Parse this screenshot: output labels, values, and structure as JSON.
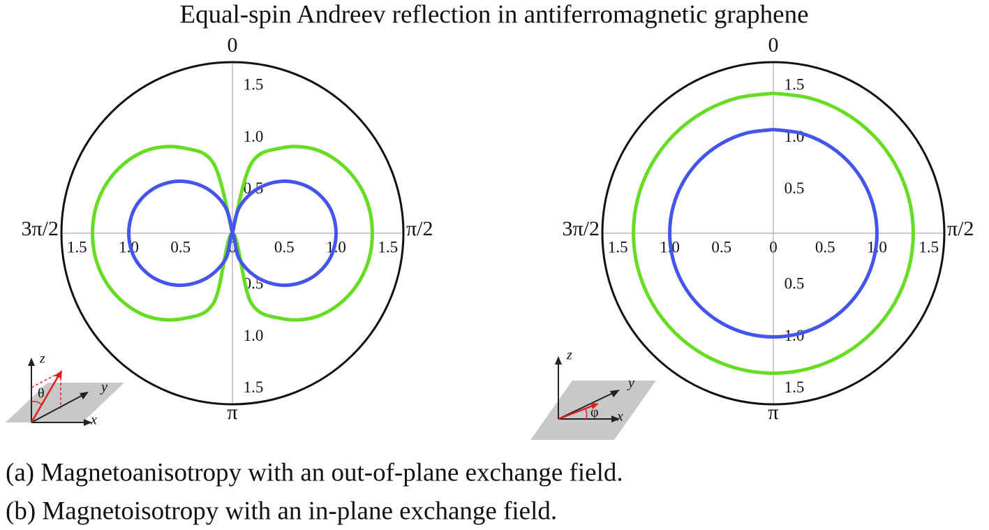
{
  "title": "Equal-spin Andreev reflection in antiferromagnetic graphene",
  "chart_data": [
    {
      "type": "polar",
      "caption": "(a) Magnetoanisotropy with an out-of-plane exchange field.",
      "theta": [
        0,
        15,
        30,
        45,
        60,
        75,
        90,
        105,
        120,
        135,
        150,
        165,
        180,
        195,
        210,
        225,
        240,
        255,
        270,
        285,
        300,
        315,
        330,
        345,
        360
      ],
      "series": [
        {
          "color": "#66dd22",
          "values": [
            0,
            0.69,
            0.95,
            1.14,
            1.26,
            1.33,
            1.35,
            1.33,
            1.26,
            1.14,
            0.95,
            0.69,
            0,
            0.69,
            0.95,
            1.14,
            1.26,
            1.33,
            1.35,
            1.33,
            1.26,
            1.14,
            0.95,
            0.69,
            0
          ]
        },
        {
          "color": "#4455ee",
          "values": [
            0,
            0.26,
            0.5,
            0.71,
            0.87,
            0.97,
            1,
            0.97,
            0.87,
            0.71,
            0.5,
            0.26,
            0,
            0.26,
            0.5,
            0.71,
            0.87,
            0.97,
            1,
            0.97,
            0.87,
            0.71,
            0.5,
            0.26,
            0
          ]
        }
      ],
      "rlim": [
        0,
        1.65
      ],
      "rticks": [
        0,
        0.5,
        {
          "value": 1,
          "label": "1.0"
        },
        1.5
      ],
      "thetaticks": [
        0,
        {
          "value": 90,
          "label": "π/2"
        },
        {
          "value": 180,
          "label": "π"
        },
        {
          "value": 270,
          "label": "3π/2"
        }
      ],
      "inset_labels": {
        "x": "x",
        "y": "y",
        "z": "z",
        "angle": "θ"
      }
    },
    {
      "type": "polar",
      "caption": "(b) Magnetoisotropy with an in-plane exchange field.",
      "theta": [
        0,
        15,
        30,
        45,
        60,
        75,
        90,
        105,
        120,
        135,
        150,
        165,
        180,
        195,
        210,
        225,
        240,
        255,
        270,
        285,
        300,
        315,
        330,
        345,
        360
      ],
      "series": [
        {
          "color": "#66dd22",
          "values": [
            1.35,
            1.35,
            1.35,
            1.35,
            1.35,
            1.35,
            1.35,
            1.35,
            1.35,
            1.35,
            1.35,
            1.35,
            1.35,
            1.35,
            1.35,
            1.35,
            1.35,
            1.35,
            1.35,
            1.35,
            1.35,
            1.35,
            1.35,
            1.35,
            1.35
          ]
        },
        {
          "color": "#4455ee",
          "values": [
            1,
            1,
            1,
            1,
            1,
            1,
            1,
            1,
            1,
            1,
            1,
            1,
            1,
            1,
            1,
            1,
            1,
            1,
            1,
            1,
            1,
            1,
            1,
            1,
            1
          ]
        }
      ],
      "rlim": [
        0,
        1.65
      ],
      "rticks": [
        0,
        0.5,
        {
          "value": 1,
          "label": "1.0"
        },
        1.5
      ],
      "thetaticks": [
        0,
        {
          "value": 90,
          "label": "π/2"
        },
        {
          "value": 180,
          "label": "π"
        },
        {
          "value": 270,
          "label": "3π/2"
        }
      ],
      "inset_labels": {
        "x": "x",
        "y": "y",
        "z": "z",
        "angle": "φ"
      }
    }
  ]
}
